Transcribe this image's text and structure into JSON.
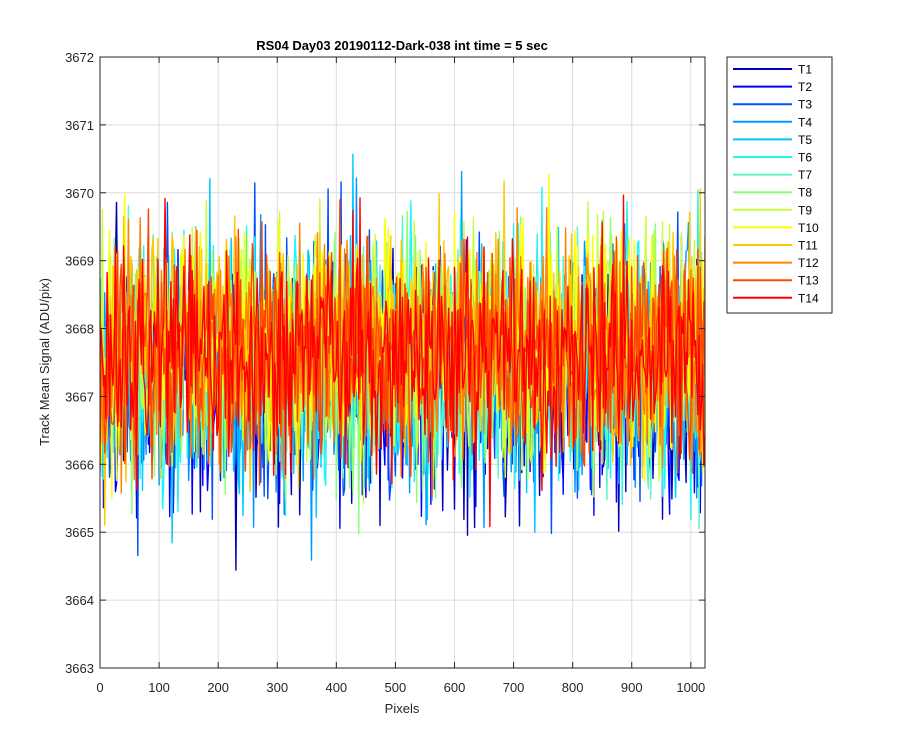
{
  "chart_data": {
    "type": "line",
    "title": "RS04 Day03 20190112-Dark-038 int time = 5 sec",
    "xlabel": "Pixels",
    "ylabel": "Track Mean Signal (ADU/pix)",
    "xlim": [
      0,
      1024
    ],
    "ylim": [
      3663,
      3672
    ],
    "xticks": [
      0,
      100,
      200,
      300,
      400,
      500,
      600,
      700,
      800,
      900,
      1000
    ],
    "yticks": [
      3663,
      3664,
      3665,
      3666,
      3667,
      3668,
      3669,
      3670,
      3671,
      3672
    ],
    "grid": true,
    "legend_position": "outside-top-right",
    "series": [
      {
        "name": "T1",
        "color": "#0000b4",
        "mean": 3667.1,
        "noise": 0.9
      },
      {
        "name": "T2",
        "color": "#0000ff",
        "mean": 3667.2,
        "noise": 0.88
      },
      {
        "name": "T3",
        "color": "#0050ff",
        "mean": 3667.3,
        "noise": 0.87
      },
      {
        "name": "T4",
        "color": "#0096ff",
        "mean": 3667.4,
        "noise": 0.86
      },
      {
        "name": "T5",
        "color": "#00c8ff",
        "mean": 3667.4,
        "noise": 0.86
      },
      {
        "name": "T6",
        "color": "#1ef5f5",
        "mean": 3667.5,
        "noise": 0.85
      },
      {
        "name": "T7",
        "color": "#5af5c8",
        "mean": 3667.5,
        "noise": 0.84
      },
      {
        "name": "T8",
        "color": "#8cff78",
        "mean": 3667.6,
        "noise": 0.84
      },
      {
        "name": "T9",
        "color": "#c8ff3c",
        "mean": 3667.7,
        "noise": 0.83
      },
      {
        "name": "T10",
        "color": "#ffff00",
        "mean": 3667.8,
        "noise": 0.83
      },
      {
        "name": "T11",
        "color": "#ffc800",
        "mean": 3667.8,
        "noise": 0.82
      },
      {
        "name": "T12",
        "color": "#ff8200",
        "mean": 3667.7,
        "noise": 0.82
      },
      {
        "name": "T13",
        "color": "#ff4600",
        "mean": 3667.6,
        "noise": 0.81
      },
      {
        "name": "T14",
        "color": "#ff0000",
        "mean": 3667.6,
        "noise": 0.8
      }
    ]
  }
}
